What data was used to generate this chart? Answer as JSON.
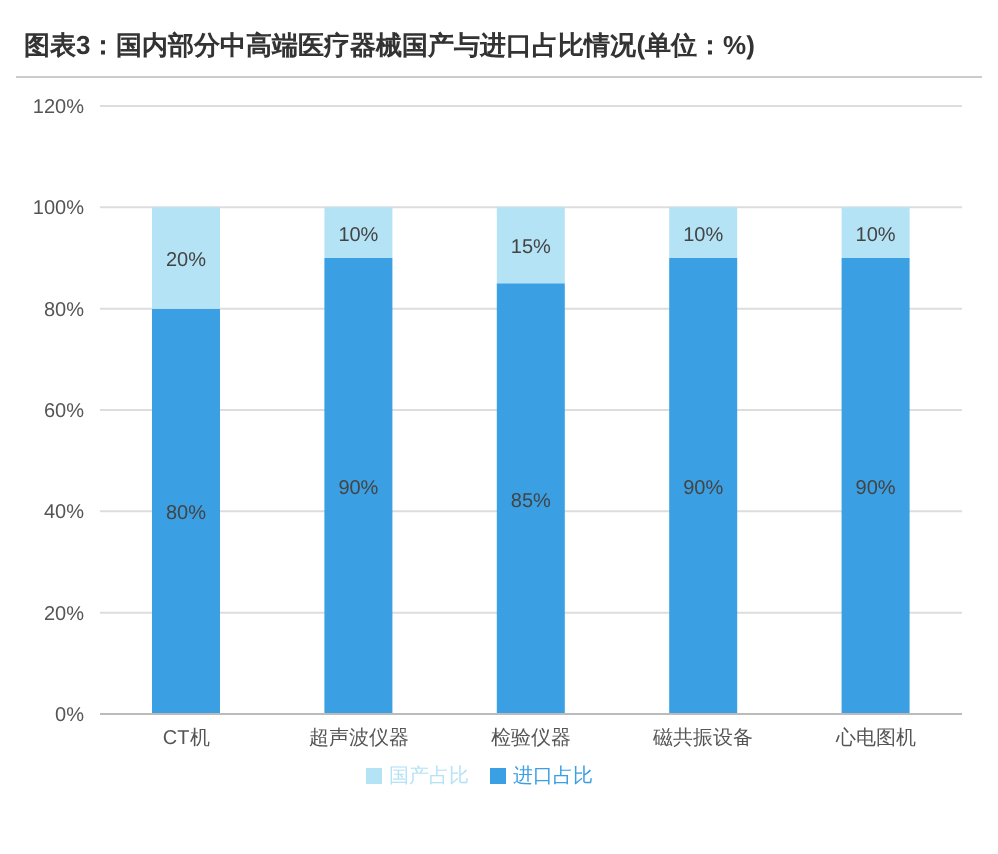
{
  "chart_data": {
    "type": "bar",
    "title": "图表3：国内部分中高端医疗器械国产与进口占比情况(单位：%)",
    "categories": [
      "CT机",
      "超声波仪器",
      "检验仪器",
      "磁共振设备",
      "心电图机"
    ],
    "stacked": true,
    "series": [
      {
        "name": "进口占比",
        "color": "#3a9fe3",
        "values": [
          80,
          90,
          85,
          90,
          90
        ],
        "value_labels": [
          "80%",
          "90%",
          "85%",
          "90%",
          "90%"
        ]
      },
      {
        "name": "国产占比",
        "color": "#b5e3f6",
        "values": [
          20,
          10,
          15,
          10,
          10
        ],
        "value_labels": [
          "20%",
          "10%",
          "15%",
          "10%",
          "10%"
        ]
      }
    ],
    "ylim": [
      0,
      120
    ],
    "yticks": [
      {
        "value": 0,
        "label": "0%"
      },
      {
        "value": 20,
        "label": "20%"
      },
      {
        "value": 40,
        "label": "40%"
      },
      {
        "value": 60,
        "label": "60%"
      },
      {
        "value": 80,
        "label": "80%"
      },
      {
        "value": 100,
        "label": "100%"
      },
      {
        "value": 120,
        "label": "120%"
      }
    ],
    "grid": "y",
    "legend": "bottom"
  }
}
